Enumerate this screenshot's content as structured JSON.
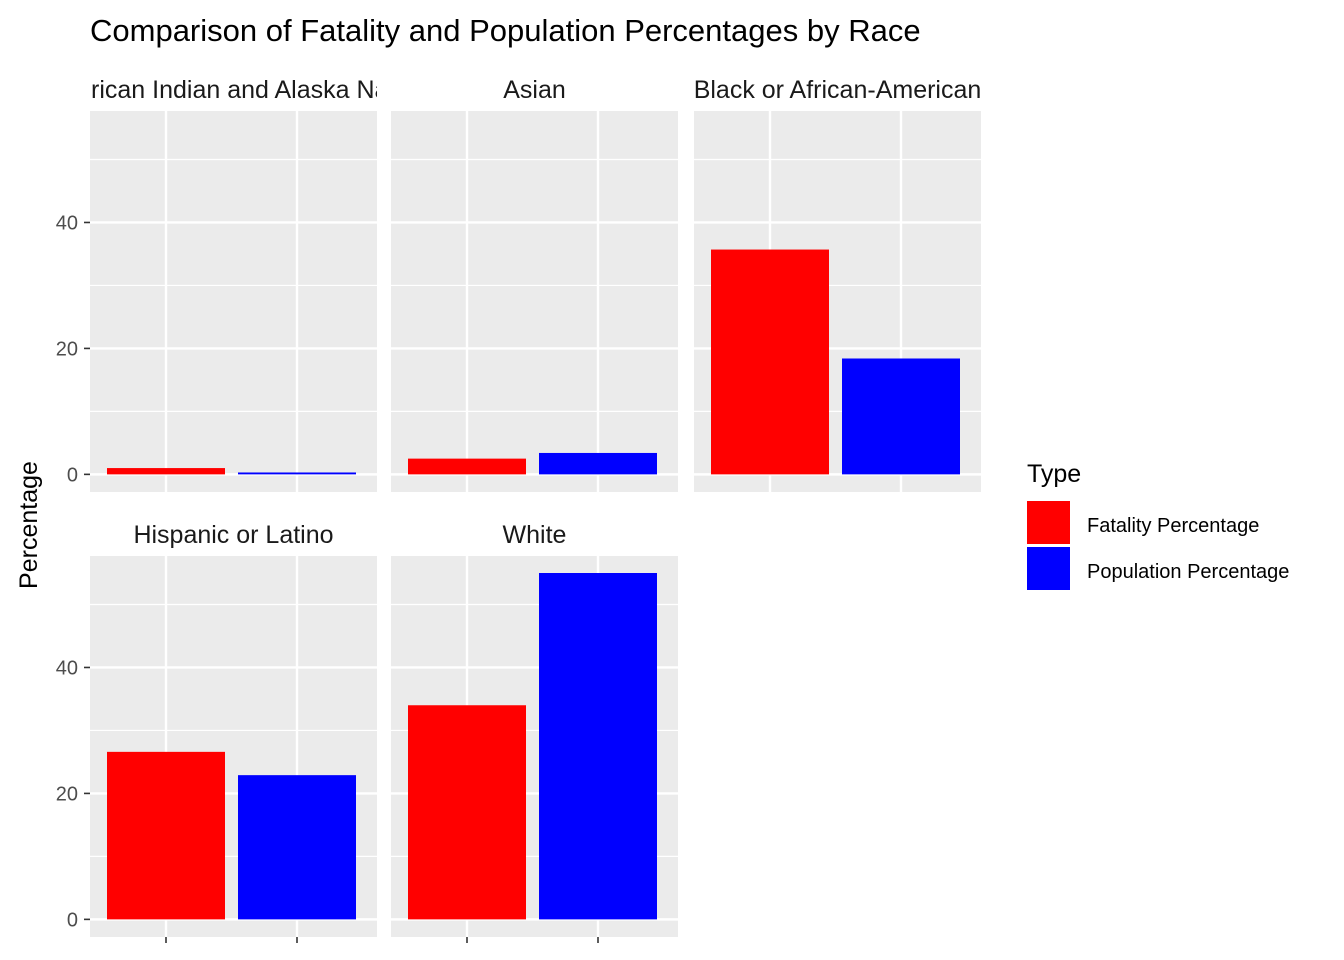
{
  "chart_data": {
    "type": "bar",
    "title": "Comparison of Fatality and Population Percentages by Race",
    "xlabel": "",
    "ylabel": "Percentage",
    "ylim": [
      -2.8,
      57.7
    ],
    "yticks": [
      0,
      20,
      40
    ],
    "grid": true,
    "facet_by": "Race",
    "facets": [
      "American Indian and Alaska Native",
      "Asian",
      "Black or African-American",
      "Hispanic or Latino",
      "White"
    ],
    "series": [
      {
        "name": "Fatality Percentage",
        "color": "#FF0000",
        "values": [
          1.0,
          2.5,
          35.7,
          26.6,
          34.0
        ]
      },
      {
        "name": "Population Percentage",
        "color": "#0000FF",
        "values": [
          0.3,
          3.4,
          18.4,
          22.9,
          55.0
        ]
      }
    ],
    "legend": {
      "title": "Type",
      "placement": "right"
    }
  }
}
